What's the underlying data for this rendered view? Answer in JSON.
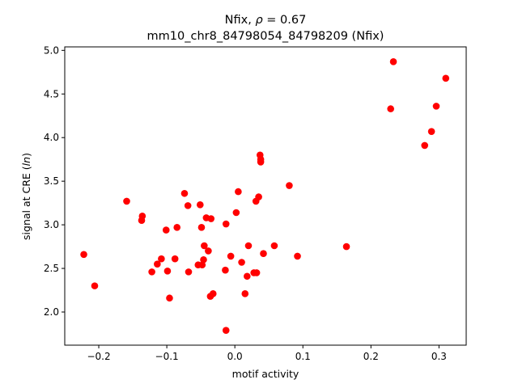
{
  "chart_data": {
    "type": "scatter",
    "title_prefix": "Nfix, ",
    "title_rho_symbol": "ρ",
    "title_rho_value": " = 0.67",
    "subtitle": "mm10_chr8_84798054_84798209 (Nfix)",
    "xlabel": "motif activity",
    "ylabel_prefix": "signal at CRE (",
    "ylabel_italic": "ln",
    "ylabel_suffix": ")",
    "xlim": [
      -0.25,
      0.34
    ],
    "ylim": [
      1.62,
      5.04
    ],
    "xticks": [
      -0.2,
      -0.1,
      0.0,
      0.1,
      0.2,
      0.3
    ],
    "xtick_labels": [
      "−0.2",
      "−0.1",
      "0.0",
      "0.1",
      "0.2",
      "0.3"
    ],
    "yticks": [
      2.0,
      2.5,
      3.0,
      3.5,
      4.0,
      4.5,
      5.0
    ],
    "ytick_labels": [
      "2.0",
      "2.5",
      "3.0",
      "3.5",
      "4.0",
      "4.5",
      "5.0"
    ],
    "grid": false,
    "marker_color": "#ff0000",
    "points": [
      [
        -0.222,
        2.66
      ],
      [
        -0.206,
        2.3
      ],
      [
        -0.159,
        3.27
      ],
      [
        -0.136,
        3.1
      ],
      [
        -0.137,
        3.05
      ],
      [
        -0.122,
        2.46
      ],
      [
        -0.114,
        2.55
      ],
      [
        -0.108,
        2.61
      ],
      [
        -0.101,
        2.94
      ],
      [
        -0.099,
        2.47
      ],
      [
        -0.096,
        2.16
      ],
      [
        -0.088,
        2.61
      ],
      [
        -0.085,
        2.97
      ],
      [
        -0.074,
        3.36
      ],
      [
        -0.069,
        3.22
      ],
      [
        -0.068,
        2.46
      ],
      [
        -0.054,
        2.54
      ],
      [
        -0.051,
        3.23
      ],
      [
        -0.049,
        2.97
      ],
      [
        -0.048,
        2.54
      ],
      [
        -0.046,
        2.6
      ],
      [
        -0.045,
        2.76
      ],
      [
        -0.042,
        3.08
      ],
      [
        -0.039,
        2.7
      ],
      [
        -0.036,
        2.18
      ],
      [
        -0.035,
        3.07
      ],
      [
        -0.032,
        2.21
      ],
      [
        -0.014,
        2.48
      ],
      [
        -0.013,
        3.01
      ],
      [
        -0.013,
        1.79
      ],
      [
        -0.006,
        2.64
      ],
      [
        0.002,
        3.14
      ],
      [
        0.005,
        3.38
      ],
      [
        0.01,
        2.57
      ],
      [
        0.015,
        2.21
      ],
      [
        0.018,
        2.41
      ],
      [
        0.02,
        2.76
      ],
      [
        0.028,
        2.45
      ],
      [
        0.031,
        3.27
      ],
      [
        0.032,
        2.45
      ],
      [
        0.035,
        3.32
      ],
      [
        0.037,
        3.8
      ],
      [
        0.038,
        3.75
      ],
      [
        0.038,
        3.72
      ],
      [
        0.042,
        2.67
      ],
      [
        0.058,
        2.76
      ],
      [
        0.08,
        3.45
      ],
      [
        0.092,
        2.64
      ],
      [
        0.164,
        2.75
      ],
      [
        0.229,
        4.33
      ],
      [
        0.233,
        4.87
      ],
      [
        0.279,
        3.91
      ],
      [
        0.289,
        4.07
      ],
      [
        0.296,
        4.36
      ],
      [
        0.31,
        4.68
      ]
    ]
  }
}
